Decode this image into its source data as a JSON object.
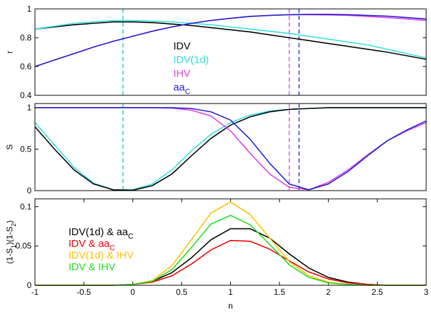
{
  "chart_data": [
    {
      "type": "line",
      "ylabel": "r",
      "xlim": [
        -1,
        3
      ],
      "ylim": [
        0.4,
        1
      ],
      "yticks": [
        0.4,
        0.6,
        0.8,
        1
      ],
      "legend": "center",
      "x": [
        -1,
        -0.8,
        -0.6,
        -0.4,
        -0.2,
        0,
        0.2,
        0.4,
        0.6,
        0.8,
        1,
        1.2,
        1.4,
        1.6,
        1.8,
        2,
        2.2,
        2.4,
        2.6,
        2.8,
        3
      ],
      "series": [
        {
          "name": "IDV",
          "color": "#000000",
          "values": [
            0.86,
            0.875,
            0.89,
            0.9,
            0.91,
            0.91,
            0.905,
            0.895,
            0.885,
            0.87,
            0.855,
            0.84,
            0.82,
            0.8,
            0.78,
            0.76,
            0.74,
            0.72,
            0.7,
            0.675,
            0.65
          ]
        },
        {
          "name": "IDV(1d)",
          "color": "#33e0e0",
          "values": [
            0.86,
            0.88,
            0.9,
            0.91,
            0.92,
            0.92,
            0.915,
            0.91,
            0.9,
            0.89,
            0.875,
            0.86,
            0.845,
            0.83,
            0.81,
            0.79,
            0.77,
            0.75,
            0.72,
            0.69,
            0.66
          ]
        },
        {
          "name": "IHV",
          "color": "#e040e0",
          "values": [
            0.6,
            0.645,
            0.69,
            0.735,
            0.775,
            0.81,
            0.845,
            0.875,
            0.9,
            0.92,
            0.935,
            0.948,
            0.955,
            0.96,
            0.96,
            0.958,
            0.955,
            0.948,
            0.94,
            0.93,
            0.92
          ]
        },
        {
          "name": [
            "aa",
            "C"
          ],
          "color": "#2020d0",
          "values": [
            0.6,
            0.645,
            0.69,
            0.735,
            0.775,
            0.81,
            0.845,
            0.875,
            0.9,
            0.92,
            0.935,
            0.948,
            0.955,
            0.96,
            0.962,
            0.962,
            0.96,
            0.955,
            0.95,
            0.94,
            0.93
          ]
        }
      ],
      "vlines": [
        {
          "x": -0.1,
          "color": "#000000"
        },
        {
          "x": -0.1,
          "color": "#33e0e0"
        },
        {
          "x": 1.6,
          "color": "#e040e0"
        },
        {
          "x": 1.7,
          "color": "#2020d0"
        }
      ]
    },
    {
      "type": "line",
      "ylabel": "S",
      "xlim": [
        -1,
        3
      ],
      "ylim": [
        0,
        1.05
      ],
      "yticks": [
        0,
        0.5,
        1
      ],
      "x": [
        -1,
        -0.8,
        -0.6,
        -0.4,
        -0.2,
        0,
        0.2,
        0.4,
        0.6,
        0.8,
        1,
        1.2,
        1.4,
        1.6,
        1.8,
        2,
        2.2,
        2.4,
        2.6,
        2.8,
        3
      ],
      "series": [
        {
          "color": "#33e0e0",
          "values": [
            0.82,
            0.55,
            0.28,
            0.09,
            0.01,
            0.01,
            0.08,
            0.25,
            0.48,
            0.68,
            0.82,
            0.91,
            0.96,
            0.98,
            0.99,
            1,
            1,
            1,
            1,
            1,
            1
          ]
        },
        {
          "color": "#000000",
          "values": [
            0.77,
            0.5,
            0.25,
            0.08,
            0.01,
            0.005,
            0.06,
            0.2,
            0.42,
            0.63,
            0.79,
            0.89,
            0.95,
            0.98,
            0.99,
            1,
            1,
            1,
            1,
            1,
            1
          ]
        },
        {
          "color": "#e040e0",
          "values": [
            1,
            1,
            1,
            1,
            1,
            1,
            1,
            0.995,
            0.97,
            0.9,
            0.72,
            0.45,
            0.2,
            0.04,
            0.01,
            0.1,
            0.25,
            0.43,
            0.6,
            0.72,
            0.82
          ]
        },
        {
          "color": "#2020d0",
          "values": [
            1,
            1,
            1,
            1,
            1,
            1,
            1,
            1,
            0.99,
            0.95,
            0.85,
            0.62,
            0.33,
            0.08,
            0.01,
            0.08,
            0.23,
            0.42,
            0.6,
            0.73,
            0.84
          ]
        }
      ],
      "vlines": [
        {
          "x": -0.1,
          "color": "#000000"
        },
        {
          "x": -0.1,
          "color": "#33e0e0"
        },
        {
          "x": 1.6,
          "color": "#e040e0"
        },
        {
          "x": 1.7,
          "color": "#2020d0"
        }
      ]
    },
    {
      "type": "line",
      "ylabel": [
        "(1-S",
        "1",
        ")(1-S",
        "2",
        ")"
      ],
      "xlabel": "n",
      "xlim": [
        -1,
        3
      ],
      "ylim": [
        0,
        0.11
      ],
      "yticks": [
        0,
        0.05,
        0.1
      ],
      "xticks": [
        -1,
        -0.5,
        0,
        0.5,
        1,
        1.5,
        2,
        2.5,
        3
      ],
      "legend": "left",
      "x": [
        -1,
        -0.8,
        -0.6,
        -0.4,
        -0.2,
        0,
        0.2,
        0.4,
        0.6,
        0.8,
        1,
        1.2,
        1.4,
        1.6,
        1.8,
        2,
        2.2,
        2.4,
        2.6,
        2.8,
        3
      ],
      "series": [
        {
          "name": [
            "IDV(1d) & aa",
            "C"
          ],
          "color": "#000000",
          "values": [
            0,
            0,
            0,
            0,
            0,
            0.001,
            0.005,
            0.016,
            0.035,
            0.058,
            0.072,
            0.072,
            0.06,
            0.04,
            0.022,
            0.01,
            0.004,
            0.001,
            0,
            0,
            0
          ]
        },
        {
          "name": [
            "IDV & aa",
            "C"
          ],
          "color": "#ee0000",
          "values": [
            0,
            0,
            0,
            0,
            0,
            0.001,
            0.004,
            0.012,
            0.027,
            0.045,
            0.057,
            0.056,
            0.046,
            0.031,
            0.017,
            0.008,
            0.003,
            0.001,
            0,
            0,
            0
          ]
        },
        {
          "name": "IDV(1d) & IHV",
          "color": "#ffc000",
          "values": [
            0,
            0,
            0,
            0,
            0,
            0.001,
            0.006,
            0.025,
            0.058,
            0.092,
            0.106,
            0.09,
            0.06,
            0.03,
            0.012,
            0.004,
            0.001,
            0,
            0,
            0,
            0
          ]
        },
        {
          "name": "IDV & IHV",
          "color": "#22dd22",
          "values": [
            0,
            0,
            0,
            0,
            0,
            0.001,
            0.005,
            0.02,
            0.048,
            0.078,
            0.089,
            0.077,
            0.052,
            0.026,
            0.01,
            0.003,
            0.001,
            0,
            0,
            0,
            0
          ]
        }
      ]
    }
  ]
}
